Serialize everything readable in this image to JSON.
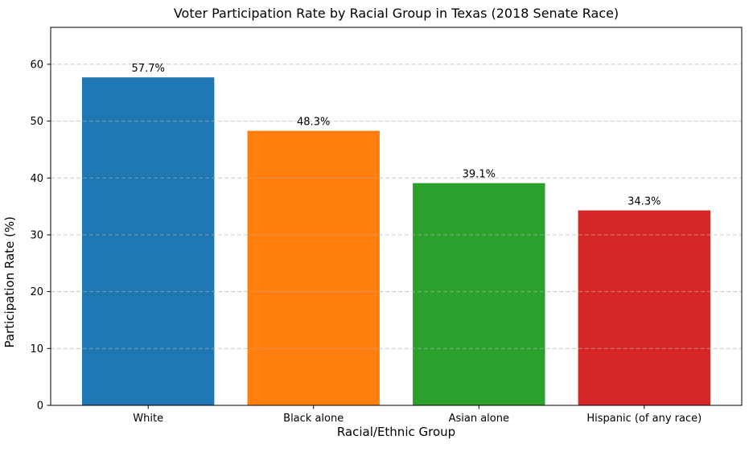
{
  "figure": {
    "background_color": "#ffffff"
  },
  "chart_data": {
    "type": "bar",
    "title": "Voter Participation Rate by Racial Group in Texas (2018 Senate Race)",
    "xlabel": "Racial/Ethnic Group",
    "ylabel": "Participation Rate (%)",
    "categories": [
      "White",
      "Black alone",
      "Asian alone",
      "Hispanic (of any race)"
    ],
    "values": [
      57.7,
      48.3,
      39.1,
      34.3
    ],
    "value_labels": [
      "57.7%",
      "48.3%",
      "39.1%",
      "34.3%"
    ],
    "bar_colors": [
      "#1f77b4",
      "#ff7f0e",
      "#2ca02c",
      "#d62728"
    ],
    "ylim": [
      0,
      66.5
    ],
    "yticks": [
      0,
      10,
      20,
      30,
      40,
      50,
      60
    ],
    "ytick_labels": [
      "0",
      "10",
      "20",
      "30",
      "40",
      "50",
      "60"
    ],
    "grid": "horizontal-dashed",
    "gridline_color": "#b0b0b0",
    "gridline_opacity": 0.7,
    "spine_color": "#000000",
    "legend_position": "none"
  }
}
